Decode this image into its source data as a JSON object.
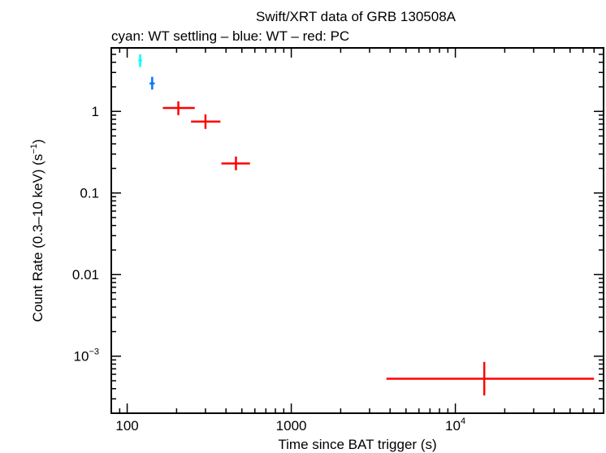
{
  "chart_data": {
    "type": "scatter",
    "title": "Swift/XRT data of GRB 130508A",
    "subtitle": "cyan: WT settling – blue: WT – red: PC",
    "xlabel": "Time since BAT trigger (s)",
    "ylabel_main": "Count Rate (0.3–10 keV) (s",
    "ylabel_sup": "−1",
    "ylabel_close": ")",
    "xscale": "log",
    "yscale": "log",
    "xlim": [
      80,
      80000
    ],
    "ylim": [
      0.0002,
      6
    ],
    "x_ticks": [
      {
        "value": 100,
        "label": "100"
      },
      {
        "value": 1000,
        "label": "1000"
      },
      {
        "value": 10000,
        "label": "10",
        "sup": "4"
      }
    ],
    "y_ticks": [
      {
        "value": 1,
        "label": "1"
      },
      {
        "value": 0.1,
        "label": "0.1"
      },
      {
        "value": 0.01,
        "label": "0.01"
      },
      {
        "value": 0.001,
        "label": "10",
        "sup": "−3"
      }
    ],
    "series": [
      {
        "color": "#00ffff",
        "points": [
          {
            "x": 120,
            "y": 4.2,
            "xerr": [
              117,
              123
            ],
            "yerr": [
              3.5,
              5.0
            ]
          }
        ]
      },
      {
        "color": "#0077ff",
        "points": [
          {
            "x": 142,
            "y": 2.2,
            "xerr": [
              137,
              147
            ],
            "yerr": [
              1.85,
              2.65
            ]
          }
        ]
      },
      {
        "color": "#ff0000",
        "points": [
          {
            "x": 205,
            "y": 1.1,
            "xerr": [
              165,
              258
            ],
            "yerr": [
              0.9,
              1.33
            ]
          },
          {
            "x": 300,
            "y": 0.75,
            "xerr": [
              245,
              370
            ],
            "yerr": [
              0.61,
              0.92
            ]
          },
          {
            "x": 460,
            "y": 0.23,
            "xerr": [
              375,
              560
            ],
            "yerr": [
              0.19,
              0.28
            ]
          },
          {
            "x": 15000,
            "y": 0.00053,
            "xerr": [
              3800,
              70000
            ],
            "yerr": [
              0.00033,
              0.00085
            ]
          }
        ]
      }
    ]
  }
}
